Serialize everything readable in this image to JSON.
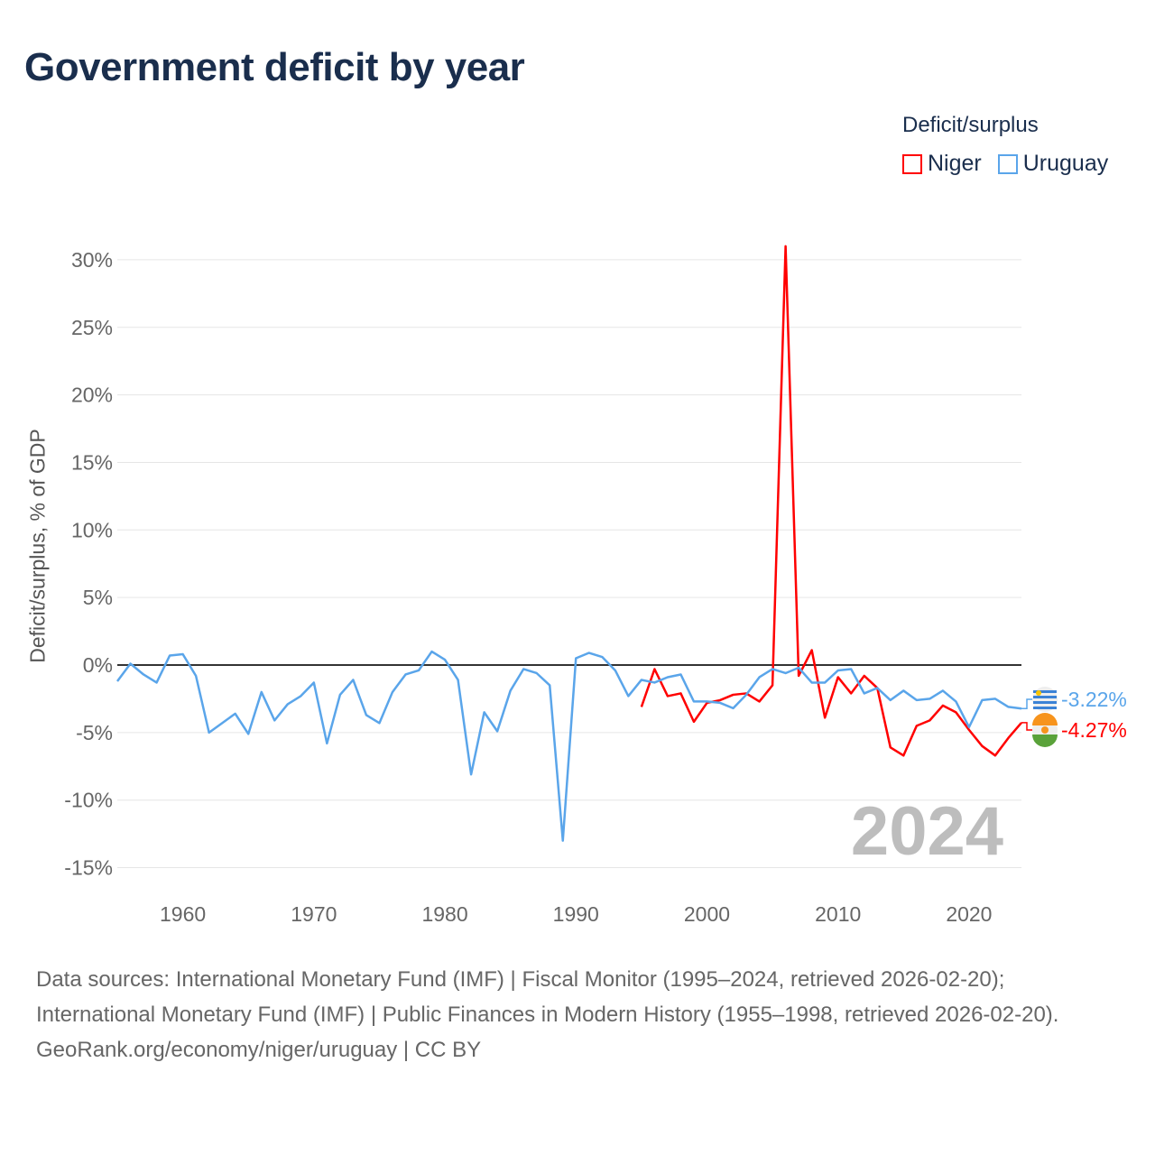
{
  "title": "Government deficit by year",
  "legend": {
    "title": "Deficit/surplus",
    "items": [
      {
        "name": "Niger",
        "color": "#ff0000"
      },
      {
        "name": "Uruguay",
        "color": "#5aa5ea"
      }
    ]
  },
  "year_stamp": "2024",
  "source": {
    "line1": "Data sources: International Monetary Fund (IMF) | Fiscal Monitor (1995–2024, retrieved 2026-02-20); International Monetary Fund (IMF) | Public Finances in Modern History (1955–1998, retrieved 2026-02-20).",
    "line2": "GeoRank.org/economy/niger/uruguay | CC BY"
  },
  "chart_data": {
    "type": "line",
    "title": "Government deficit by year",
    "xlabel": "",
    "ylabel": "Deficit/surplus, % of GDP",
    "xlim": [
      1955,
      2024
    ],
    "ylim": [
      -17,
      32
    ],
    "xticks": [
      1960,
      1970,
      1980,
      1990,
      2000,
      2010,
      2020
    ],
    "yticks": [
      30,
      25,
      20,
      15,
      10,
      5,
      0,
      -5,
      -10,
      -15
    ],
    "ytick_labels": [
      "30%",
      "25%",
      "20%",
      "15%",
      "10%",
      "5%",
      "0%",
      "-5%",
      "-10%",
      "-15%"
    ],
    "grid": true,
    "legend_position": "top-right",
    "series": [
      {
        "name": "Uruguay",
        "color": "#5aa5ea",
        "end_label": "-3.22%",
        "start_year": 1955,
        "values": [
          -1.2,
          0.1,
          -0.7,
          -1.3,
          0.7,
          0.8,
          -0.8,
          -5.0,
          -4.3,
          -3.6,
          -5.1,
          -2.0,
          -4.1,
          -2.9,
          -2.3,
          -1.3,
          -5.8,
          -2.2,
          -1.1,
          -3.7,
          -4.3,
          -2.0,
          -0.7,
          -0.4,
          1.0,
          0.4,
          -1.1,
          -8.1,
          -3.5,
          -4.9,
          -1.9,
          -0.3,
          -0.6,
          -1.5,
          -13.0,
          0.5,
          0.9,
          0.6,
          -0.4,
          -2.3,
          -1.1,
          -1.3,
          -0.9,
          -0.7,
          -2.7,
          -2.7,
          -2.8,
          -3.2,
          -2.2,
          -0.9,
          -0.3,
          -0.6,
          -0.2,
          -1.3,
          -1.3,
          -0.4,
          -0.3,
          -2.1,
          -1.7,
          -2.6,
          -1.9,
          -2.6,
          -2.5,
          -1.9,
          -2.7,
          -4.6,
          -2.6,
          -2.5,
          -3.1,
          -3.22
        ]
      },
      {
        "name": "Niger",
        "color": "#ff0000",
        "end_label": "-4.27%",
        "start_year": 1995,
        "values": [
          -3.1,
          -0.3,
          -2.3,
          -2.1,
          -4.2,
          -2.8,
          -2.6,
          -2.2,
          -2.1,
          -2.7,
          -1.5,
          31.0,
          -0.8,
          1.1,
          -3.9,
          -0.9,
          -2.1,
          -0.8,
          -1.7,
          -6.1,
          -6.7,
          -4.5,
          -4.1,
          -3.0,
          -3.5,
          -4.8,
          -6.0,
          -6.7,
          -5.4,
          -4.27
        ]
      }
    ]
  }
}
